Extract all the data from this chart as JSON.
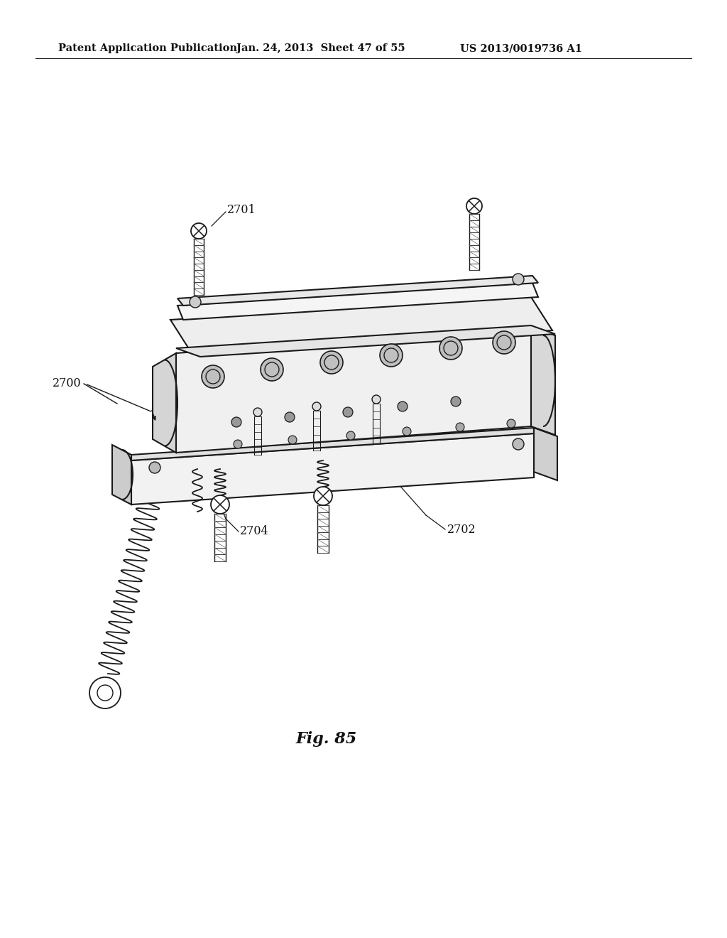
{
  "bg_color": "#ffffff",
  "header_left": "Patent Application Publication",
  "header_mid": "Jan. 24, 2013  Sheet 47 of 55",
  "header_right": "US 2013/0019736 A1",
  "fig_label": "Fig. 85",
  "line_color": "#1a1a1a",
  "label_fontsize": 11.5,
  "header_fontsize": 10.5,
  "fig_label_fontsize": 16
}
